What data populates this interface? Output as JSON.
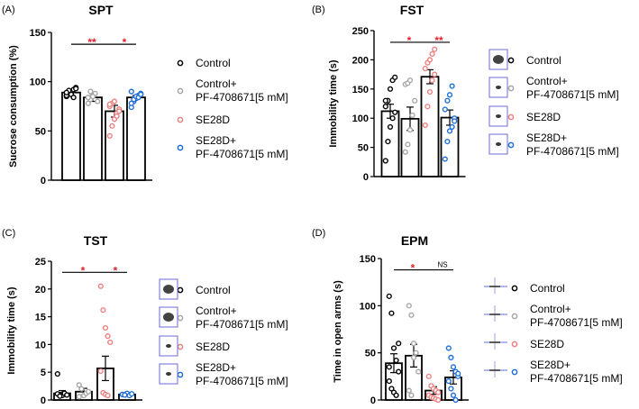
{
  "chart_data": [
    {
      "type": "bar",
      "panel_label": "(A)",
      "title": "SPT",
      "ylabel": "Sucrose consumption (%)",
      "ylim": [
        0,
        150
      ],
      "yticks": [
        0,
        50,
        100,
        150
      ],
      "categories": [
        "Control",
        "Control+ PF-4708671[5 mM]",
        "SE28D",
        "SE28D+ PF-4708671[5 mM]"
      ],
      "values": [
        89,
        84,
        70,
        84
      ],
      "errors": [
        3,
        4,
        6,
        2
      ],
      "points": [
        [
          85,
          88,
          90,
          92,
          94,
          86,
          91,
          87,
          84,
          93,
          89
        ],
        [
          78,
          82,
          86,
          88,
          80,
          84,
          90,
          85
        ],
        [
          45,
          55,
          62,
          68,
          72,
          75,
          78,
          80,
          65,
          70,
          77
        ],
        [
          74,
          80,
          83,
          86,
          88,
          90,
          82,
          85,
          84,
          87,
          78
        ]
      ],
      "brackets": [
        {
          "from": 0,
          "to": 2,
          "label": "**",
          "y": 138
        },
        {
          "from": 2,
          "to": 3,
          "label": "*",
          "y": 138
        }
      ],
      "legend_images": false
    },
    {
      "type": "bar",
      "panel_label": "(B)",
      "title": "FST",
      "ylabel": "Immobility time (s)",
      "ylim": [
        0,
        250
      ],
      "yticks": [
        0,
        50,
        100,
        150,
        200,
        250
      ],
      "categories": [
        "Control",
        "Control+ PF-4708671[5 mM]",
        "SE28D",
        "SE28D+ PF-4708671[5 mM]"
      ],
      "values": [
        112,
        99,
        171,
        101
      ],
      "errors": [
        12,
        20,
        12,
        13
      ],
      "points": [
        [
          27,
          60,
          85,
          100,
          110,
          120,
          130,
          150,
          165,
          170,
          130
        ],
        [
          42,
          55,
          80,
          105,
          130,
          158,
          160,
          165
        ],
        [
          88,
          120,
          145,
          165,
          175,
          185,
          195,
          200,
          210,
          218
        ],
        [
          30,
          60,
          78,
          85,
          100,
          115,
          130,
          140,
          155,
          95
        ]
      ],
      "brackets": [
        {
          "from": 0,
          "to": 2,
          "label": "*",
          "y": 230
        },
        {
          "from": 2,
          "to": 3,
          "label": "**",
          "y": 230
        }
      ],
      "legend_images": true
    },
    {
      "type": "bar",
      "panel_label": "(C)",
      "title": "TST",
      "ylabel": "Immobility time (s)",
      "ylim": [
        0,
        25
      ],
      "yticks": [
        0,
        5,
        10,
        15,
        20,
        25
      ],
      "categories": [
        "Control",
        "Control+ PF-4708671[5 mM]",
        "SE28D",
        "SE28D+ PF-4708671[5 mM]"
      ],
      "values": [
        1.2,
        1.5,
        5.7,
        1.0
      ],
      "errors": [
        0.5,
        0.6,
        2.2,
        0.3
      ],
      "points": [
        [
          4.7,
          1.0,
          0.8,
          1.2,
          0.9,
          1.1,
          0.7
        ],
        [
          2.7,
          2.0,
          0.8,
          1.2,
          1.5,
          0.6
        ],
        [
          20.5,
          16.2,
          13.0,
          11.5,
          10.4,
          5.2,
          1.3,
          1.0,
          0.8
        ],
        [
          1.0,
          0.9,
          1.2,
          0.8,
          1.1,
          1.0,
          0.9
        ]
      ],
      "brackets": [
        {
          "from": 0,
          "to": 2,
          "label": "*",
          "y": 23
        },
        {
          "from": 2,
          "to": 3,
          "label": "*",
          "y": 23
        }
      ],
      "legend_images": true
    },
    {
      "type": "bar",
      "panel_label": "(D)",
      "title": "EPM",
      "ylabel": "Time in open arms (s)",
      "ylim": [
        0,
        150
      ],
      "yticks": [
        0,
        50,
        100,
        150
      ],
      "categories": [
        "Control",
        "Control+ PF-4708671[5 mM]",
        "SE28D",
        "SE28D+ PF-4708671[5 mM]"
      ],
      "values": [
        39,
        47,
        10,
        24
      ],
      "errors": [
        10,
        12,
        4,
        7
      ],
      "points": [
        [
          110,
          92,
          55,
          42,
          30,
          20,
          12,
          8,
          5,
          60,
          35
        ],
        [
          100,
          90,
          60,
          50,
          30,
          10,
          5,
          45
        ],
        [
          25,
          15,
          12,
          10,
          8,
          5,
          3,
          2,
          1,
          0
        ],
        [
          55,
          45,
          35,
          30,
          25,
          20,
          12,
          5,
          0,
          28
        ]
      ],
      "brackets": [
        {
          "from": 0,
          "to": 2,
          "label": "*",
          "y": 138
        },
        {
          "from": 2,
          "to": 3,
          "label": "NS",
          "y": 138
        }
      ],
      "legend_images": true
    }
  ],
  "legend": {
    "entries": [
      {
        "lines": [
          "Control"
        ],
        "color": "#000000"
      },
      {
        "lines": [
          "Control+",
          "PF-4708671[5 mM]"
        ],
        "color": "#a6a6a6"
      },
      {
        "lines": [
          "SE28D"
        ],
        "color": "#f08080"
      },
      {
        "lines": [
          "SE28D+",
          "PF-4708671[5 mM]"
        ],
        "color": "#1f6fd8"
      }
    ]
  },
  "colors": {
    "sig": "#e8202a",
    "ns": "#000000",
    "bar_edge": "#000000",
    "legend_box": "#6b6bd6"
  }
}
